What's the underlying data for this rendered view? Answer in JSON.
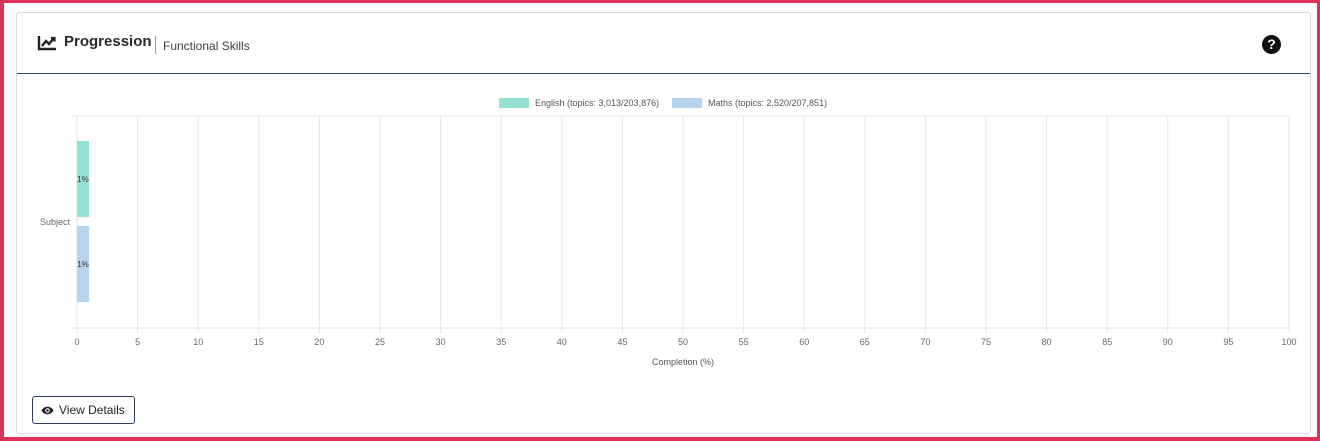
{
  "header": {
    "title": "Progression",
    "subtitle": "Functional Skills",
    "icon": "line-chart-icon",
    "help_icon": "question-circle-icon"
  },
  "footer": {
    "view_details_label": "View Details",
    "view_details_icon": "eye-icon"
  },
  "colors": {
    "frame": "#e03158",
    "header_rule": "#384a6b",
    "english": "#95e1d3",
    "maths": "#b7d3ee"
  },
  "chart_data": {
    "type": "bar",
    "orientation": "horizontal",
    "categories": [
      "Subject"
    ],
    "series": [
      {
        "name": "English (topics: 3,013/203,876)",
        "values": [
          1
        ],
        "label": "1%",
        "color": "#95e1d3"
      },
      {
        "name": "Maths (topics: 2,520/207,851)",
        "values": [
          1
        ],
        "label": "1%",
        "color": "#b7d3ee"
      }
    ],
    "xlabel": "Completion (%)",
    "ylabel": "",
    "xlim": [
      0,
      100
    ],
    "xticks": [
      "0",
      "5",
      "10",
      "15",
      "20",
      "25",
      "30",
      "35",
      "40",
      "45",
      "50",
      "55",
      "60",
      "65",
      "70",
      "75",
      "80",
      "85",
      "90",
      "95",
      "100"
    ],
    "grid": true,
    "legend": "top-center"
  }
}
